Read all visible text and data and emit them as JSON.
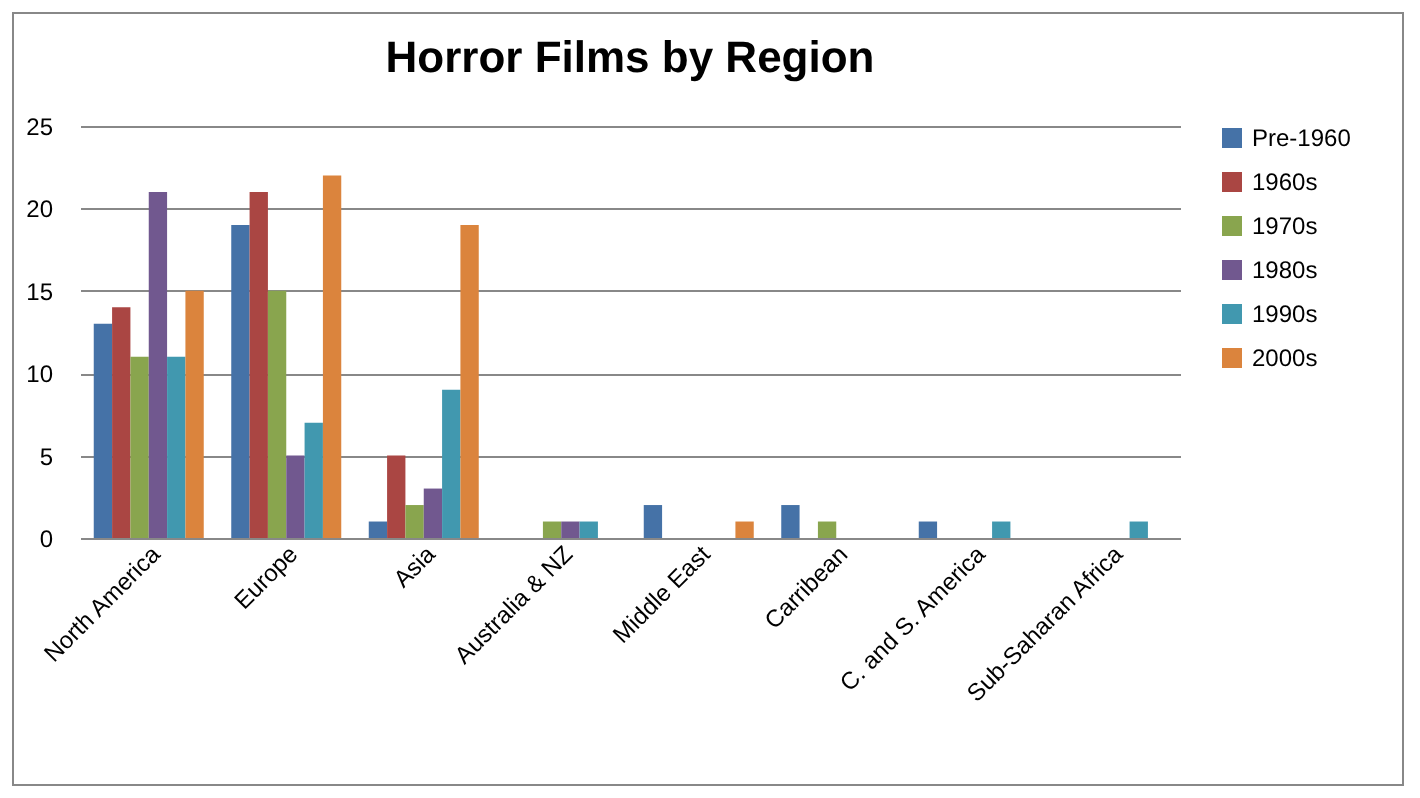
{
  "chart_data": {
    "type": "bar",
    "title": "Horror Films by Region",
    "categories": [
      "North America",
      "Europe",
      "Asia",
      "Australia & NZ",
      "Middle East",
      "Carribean",
      "C. and S. America",
      "Sub-Saharan Africa"
    ],
    "series": [
      {
        "name": "Pre-1960",
        "color": "#4572a7",
        "values": [
          13,
          19,
          1,
          0,
          2,
          2,
          1,
          0
        ]
      },
      {
        "name": "1960s",
        "color": "#aa4643",
        "values": [
          14,
          21,
          5,
          0,
          0,
          0,
          0,
          0
        ]
      },
      {
        "name": "1970s",
        "color": "#89a54e",
        "values": [
          11,
          15,
          2,
          1,
          0,
          1,
          0,
          0
        ]
      },
      {
        "name": "1980s",
        "color": "#71588f",
        "values": [
          21,
          5,
          3,
          1,
          0,
          0,
          0,
          0
        ]
      },
      {
        "name": "1990s",
        "color": "#4198af",
        "values": [
          11,
          7,
          9,
          1,
          0,
          0,
          1,
          1
        ]
      },
      {
        "name": "2000s",
        "color": "#db843d",
        "values": [
          15,
          22,
          19,
          0,
          1,
          0,
          0,
          0
        ]
      }
    ],
    "ylim": [
      0,
      25
    ],
    "yticks": [
      0,
      5,
      10,
      15,
      20,
      25
    ],
    "grid": "y",
    "legend": "right"
  }
}
